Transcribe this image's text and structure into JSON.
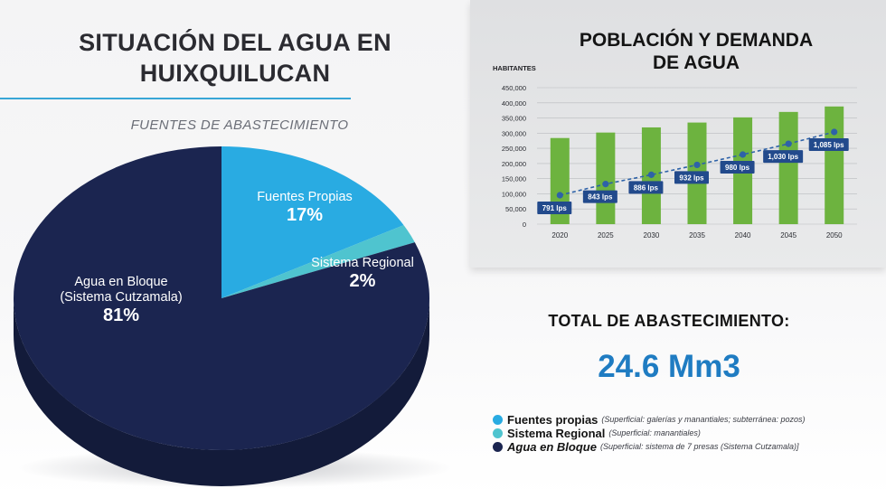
{
  "left": {
    "title_line1": "SITUACIÓN DEL AGUA EN",
    "title_line2": "HUIXQUILUCAN",
    "subtitle": "FUENTES DE ABASTECIMIENTO"
  },
  "pie": {
    "slices": [
      {
        "name": "Fuentes Propias",
        "pct_label": "17%",
        "value": 17,
        "color": "#29abe2"
      },
      {
        "name": "Sistema Regional",
        "pct_label": "2%",
        "value": 2,
        "color": "#4fc4cf"
      },
      {
        "name_line1": "Agua en Bloque",
        "name_line2": "(Sistema Cutzamala)",
        "pct_label": "81%",
        "value": 81,
        "color": "#1b2550"
      }
    ]
  },
  "chart": {
    "title_line1": "POBLACIÓN Y DEMANDA",
    "title_line2": "DE AGUA",
    "ylabel": "HABITANTES"
  },
  "chart_data": {
    "type": "bar",
    "title": "POBLACIÓN Y DEMANDA DE AGUA",
    "ylabel": "HABITANTES",
    "categories": [
      "2020",
      "2025",
      "2030",
      "2035",
      "2040",
      "2045",
      "2050"
    ],
    "values": [
      284000,
      302000,
      319000,
      335000,
      352000,
      370000,
      388000
    ],
    "ylim": [
      0,
      450000
    ],
    "yticks": [
      "0",
      "50,000",
      "100,000",
      "150,000",
      "200,000",
      "250,000",
      "300,000",
      "350,000",
      "400,000",
      "450,000"
    ],
    "grid": true,
    "bar_color": "#6db33f",
    "line": {
      "labels": [
        "791 lps",
        "843 lps",
        "886 lps",
        "932 lps",
        "980 lps",
        "1,030 lps",
        "1,085 lps"
      ],
      "values_lps": [
        791,
        843,
        886,
        932,
        980,
        1030,
        1085
      ],
      "color": "#2e62a8"
    }
  },
  "total": {
    "label": "TOTAL DE ABASTECIMIENTO:",
    "value": "24.6 Mm3"
  },
  "legend": [
    {
      "name": "Fuentes propias",
      "desc": "(Superficial: galerías y manantiales; subterránea: pozos)",
      "color": "#29abe2"
    },
    {
      "name": "Sistema Regional",
      "desc": "(Superficial: manantiales)",
      "color": "#4fc4cf"
    },
    {
      "name": "Agua en Bloque",
      "desc": "(Superficial: sistema de 7 presas (Sistema Cutzamala)]",
      "color": "#1b2550"
    }
  ]
}
